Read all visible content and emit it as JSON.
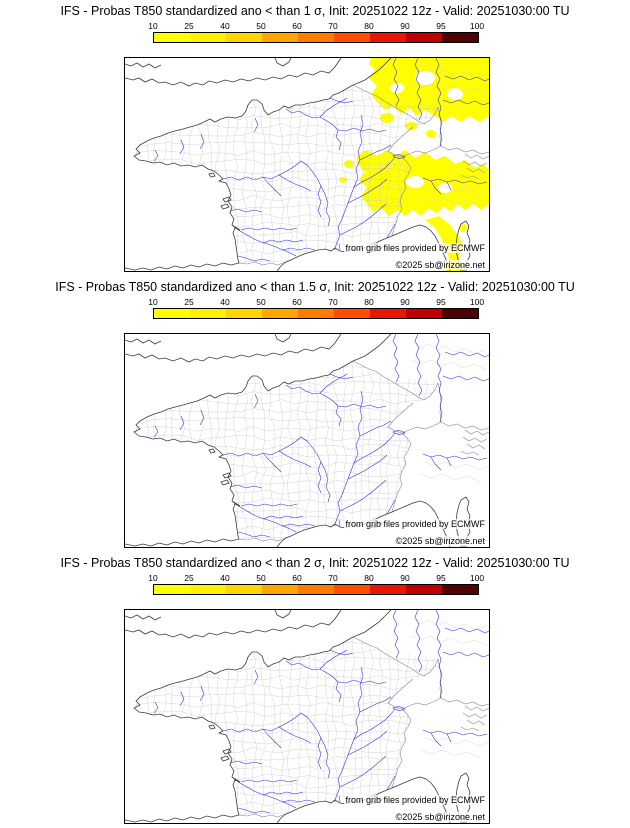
{
  "panels": [
    {
      "title": "IFS - Probas T850  standardized ano < than 1 σ, Init: 20251022 12z - Valid: 20251030:00 TU",
      "has_yellow_overlay": true
    },
    {
      "title": "IFS - Probas T850  standardized ano < than 1.5 σ, Init: 20251022 12z - Valid: 20251030:00 TU",
      "has_yellow_overlay": false
    },
    {
      "title": "IFS - Probas T850  standardized ano < than 2 σ, Init: 20251022 12z - Valid: 20251030:00 TU",
      "has_yellow_overlay": false
    }
  ],
  "colorbar": {
    "ticks": [
      "10",
      "25",
      "40",
      "50",
      "60",
      "70",
      "80",
      "90",
      "95",
      "100"
    ],
    "colors": [
      "#ffff00",
      "#ffef00",
      "#ffd400",
      "#ffa600",
      "#ff7c00",
      "#ff4e00",
      "#e81800",
      "#c00000",
      "#500000"
    ]
  },
  "map": {
    "credit_line1": "from grib files provided by ECMWF",
    "credit_line2": "©2025 sb@irizone.net",
    "river_color": "#2a2ae0",
    "admin_mesh_color": "#c9c9c9",
    "coast_color": "#3c3c3c",
    "country_border_color": "#8a8a8a",
    "overlay_color": "#ffff00",
    "frame_color": "#000000",
    "relief_color": "#aaaaaa"
  }
}
